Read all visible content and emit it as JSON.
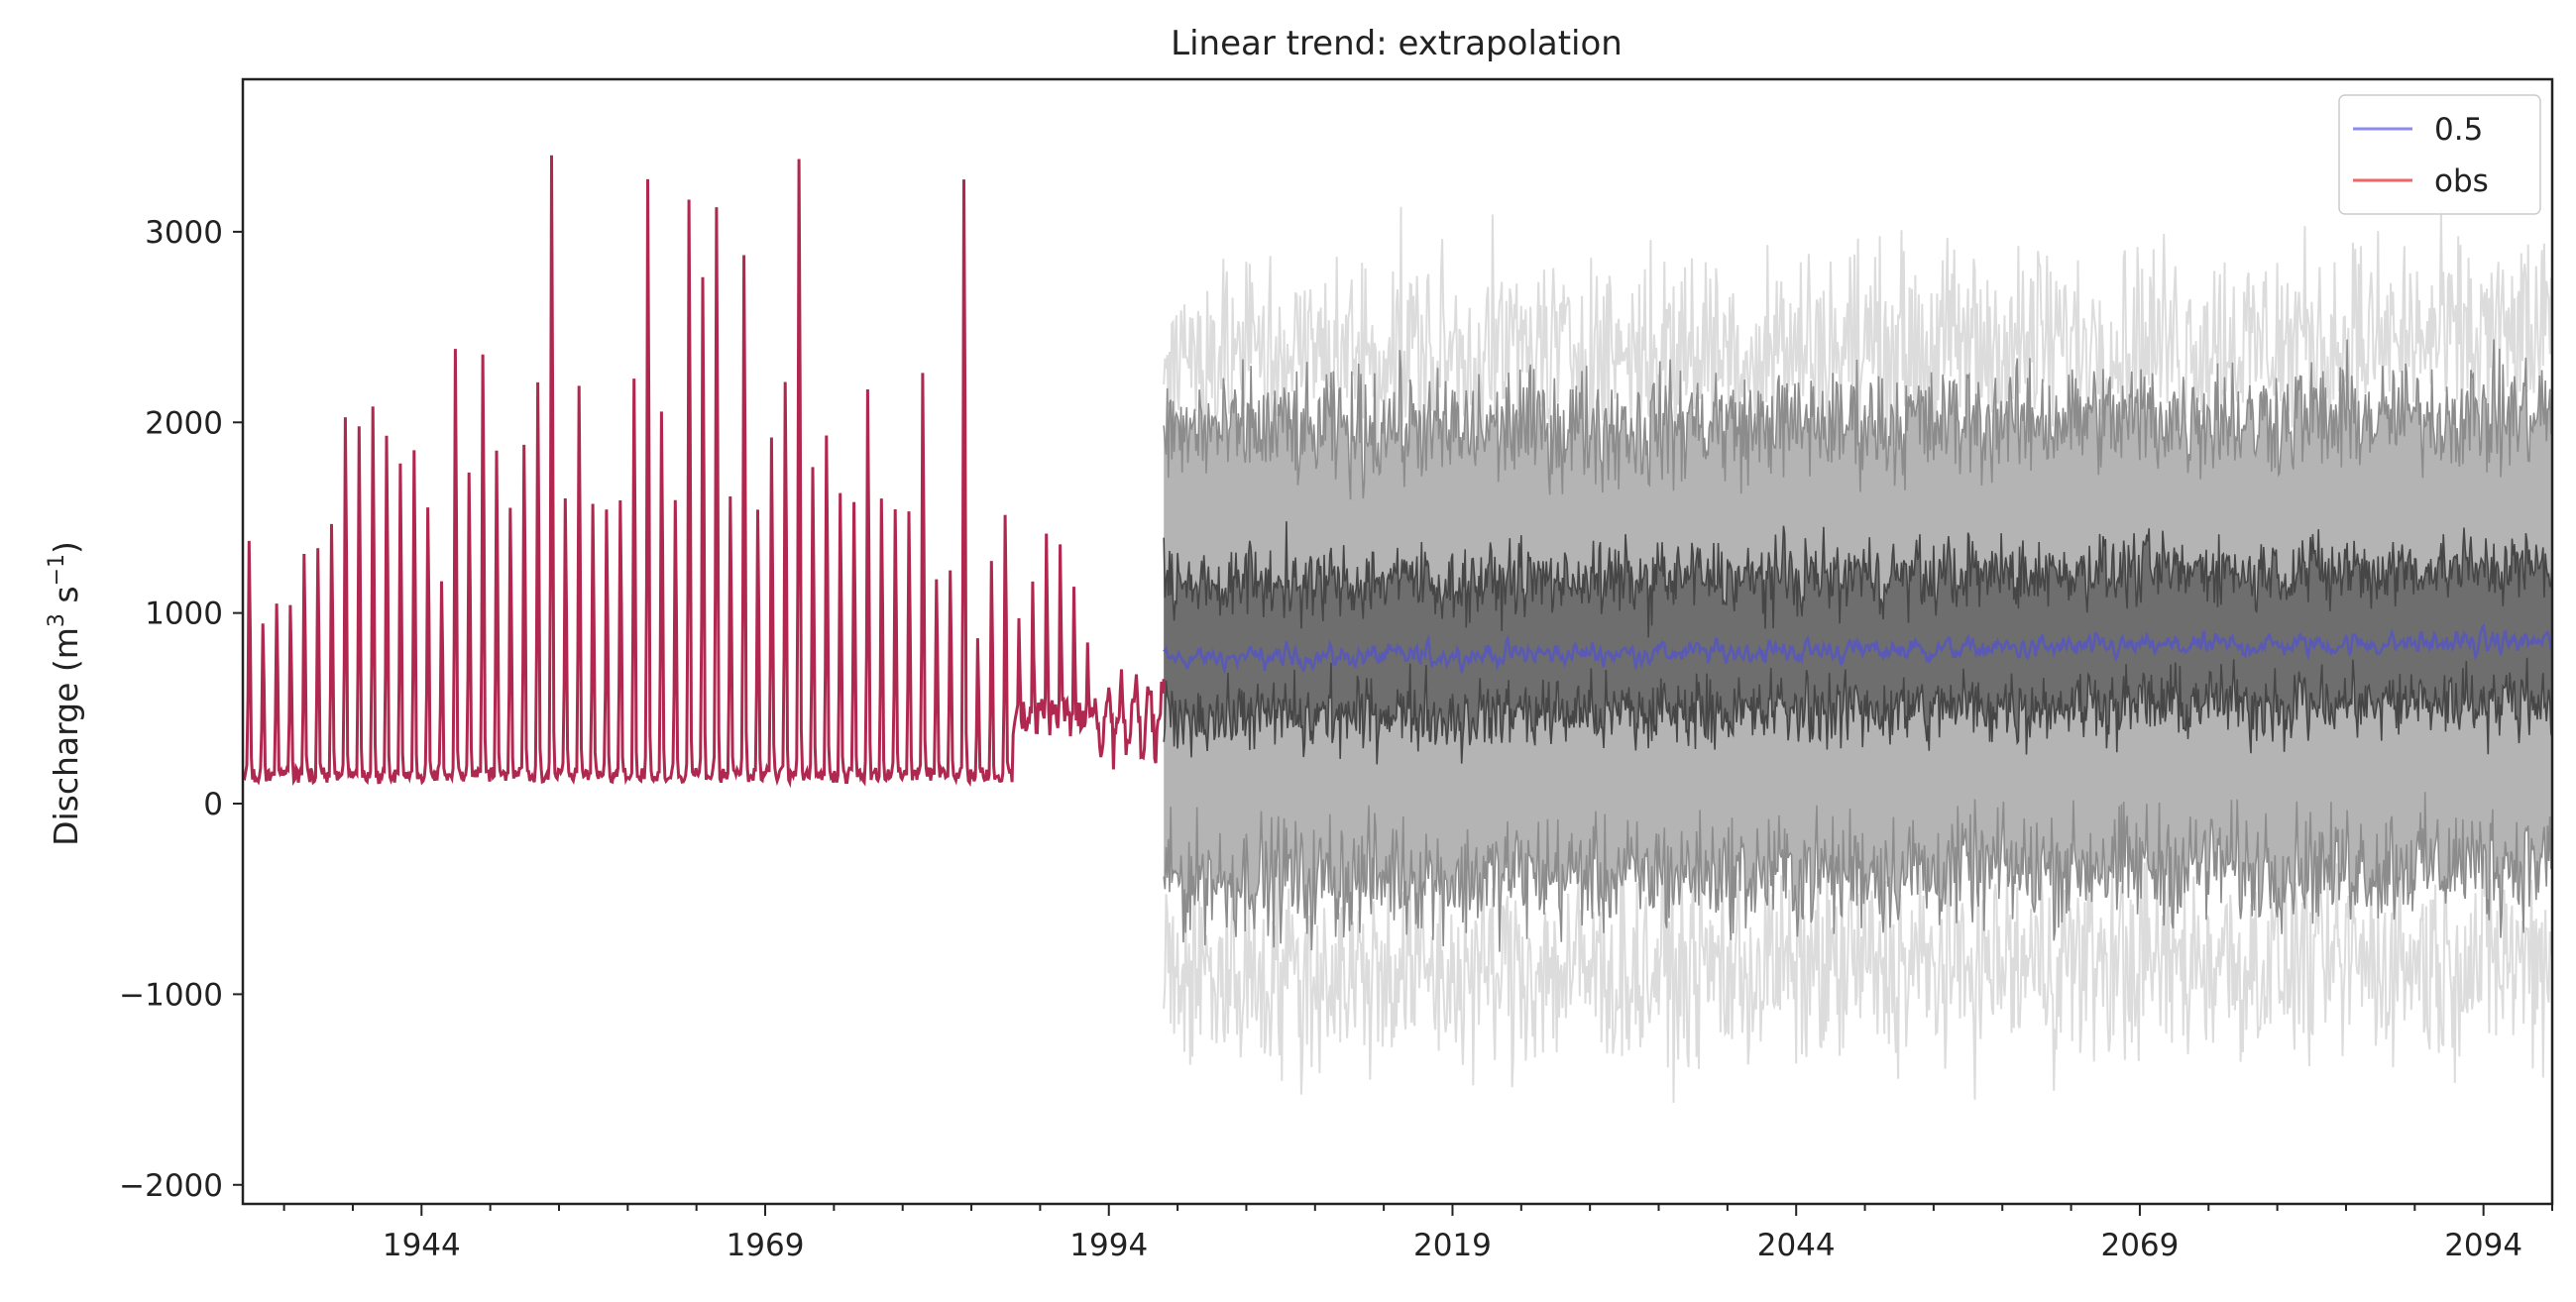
{
  "chart_data": {
    "type": "line",
    "title": "Linear trend: extrapolation",
    "xlabel": "",
    "ylabel": "Discharge (m",
    "ylabel_sup1": "3",
    "ylabel_mid": " s",
    "ylabel_sup2": "−1",
    "ylabel_end": ")",
    "xlim": [
      1931,
      2099
    ],
    "ylim": [
      -2100,
      3800
    ],
    "x_ticks": [
      1944,
      1969,
      1994,
      2019,
      2044,
      2069,
      2094
    ],
    "x_tick_labels": [
      "1944",
      "1969",
      "1994",
      "2019",
      "2044",
      "2069",
      "2094"
    ],
    "y_ticks": [
      -2000,
      -1000,
      0,
      1000,
      2000,
      3000
    ],
    "y_tick_labels": [
      "−2000",
      "−1000",
      "0",
      "1000",
      "2000",
      "3000"
    ],
    "grid": false,
    "legend_position": "top-right",
    "legend": [
      {
        "label": "0.5",
        "color": "#8c8cf0"
      },
      {
        "label": "obs",
        "color": "#f06464"
      }
    ],
    "observed": {
      "name": "obs",
      "color": "#b0284f",
      "x_start": 1931,
      "x_end": 1998,
      "annual_peaks": [
        [
          1931,
          1420
        ],
        [
          1932,
          970
        ],
        [
          1933,
          1080
        ],
        [
          1934,
          1070
        ],
        [
          1935,
          1350
        ],
        [
          1936,
          1380
        ],
        [
          1937,
          1510
        ],
        [
          1938,
          2090
        ],
        [
          1939,
          2040
        ],
        [
          1940,
          2150
        ],
        [
          1941,
          1990
        ],
        [
          1942,
          1840
        ],
        [
          1943,
          1910
        ],
        [
          1944,
          1600
        ],
        [
          1945,
          1200
        ],
        [
          1946,
          2460
        ],
        [
          1947,
          1790
        ],
        [
          1948,
          2430
        ],
        [
          1949,
          1910
        ],
        [
          1950,
          1600
        ],
        [
          1951,
          1940
        ],
        [
          1952,
          2280
        ],
        [
          1953,
          3510
        ],
        [
          1954,
          1650
        ],
        [
          1955,
          2260
        ],
        [
          1956,
          1620
        ],
        [
          1957,
          1590
        ],
        [
          1958,
          1640
        ],
        [
          1959,
          2300
        ],
        [
          1960,
          3380
        ],
        [
          1961,
          2120
        ],
        [
          1962,
          1640
        ],
        [
          1963,
          3270
        ],
        [
          1964,
          2850
        ],
        [
          1965,
          3230
        ],
        [
          1966,
          1660
        ],
        [
          1967,
          2970
        ],
        [
          1968,
          1590
        ],
        [
          1969,
          1980
        ],
        [
          1970,
          2280
        ],
        [
          1971,
          3490
        ],
        [
          1972,
          1820
        ],
        [
          1973,
          1990
        ],
        [
          1974,
          1680
        ],
        [
          1975,
          1630
        ],
        [
          1976,
          2240
        ],
        [
          1977,
          1650
        ],
        [
          1978,
          1590
        ],
        [
          1979,
          1580
        ],
        [
          1980,
          2330
        ],
        [
          1981,
          1210
        ],
        [
          1982,
          1260
        ],
        [
          1983,
          3380
        ],
        [
          1984,
          890
        ],
        [
          1985,
          1310
        ],
        [
          1986,
          1560
        ],
        [
          1987,
          1000
        ],
        [
          1988,
          1200
        ],
        [
          1989,
          1460
        ],
        [
          1990,
          1400
        ],
        [
          1991,
          1170
        ],
        [
          1992,
          870
        ]
      ],
      "baseline_low": 110
    },
    "forecast": {
      "x_start": 1998,
      "x_end": 2099,
      "median": {
        "name": "0.5",
        "color": "#5a5ab4",
        "level": 760,
        "level_end": 850,
        "noise": 110
      },
      "inner_band": {
        "color": "#6e6e6e",
        "low": 450,
        "high": 1150,
        "noise": 160
      },
      "middle_band": {
        "color": "#b4b4b4",
        "low": -400,
        "high": 1950,
        "noise": 260
      },
      "outer_lines": {
        "color": "#dcdcdc",
        "low": -900,
        "high": 2350,
        "noise": 450
      }
    }
  }
}
